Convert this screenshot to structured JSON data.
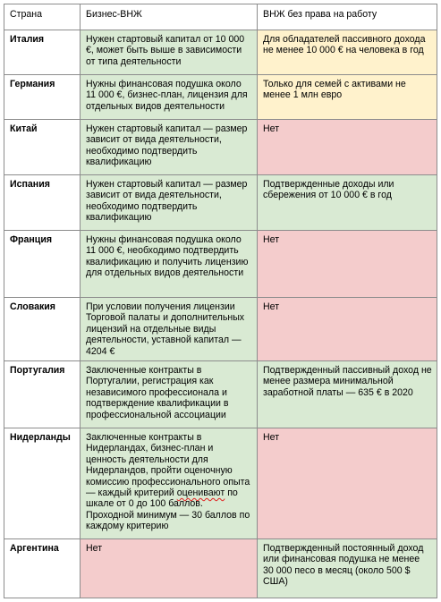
{
  "headers": {
    "country": "Страна",
    "business": "Бизнес-ВНЖ",
    "passive": "ВНЖ без права на работу"
  },
  "colors": {
    "green": "#d9ead3",
    "yellow": "#fff2cc",
    "red": "#f4cccc",
    "border": "#8c8c8c"
  },
  "rows": [
    {
      "country": "Италия",
      "business": "Нужен стартовый капитал от 10 000 €, может быть выше в зависимости от типа деятельности",
      "business_color": "green",
      "passive": "Для обладателей пассивного дохода не менее 10 000 € на человека в год",
      "passive_color": "yellow"
    },
    {
      "country": "Германия",
      "business": "Нужны финансовая подушка около 11 000 €, бизнес-план, лицензия для отдельных видов деятельности",
      "business_color": "green",
      "passive": "Только для семей с активами не менее 1 млн евро",
      "passive_color": "yellow"
    },
    {
      "country": "Китай",
      "business": "Нужен стартовый капитал — размер зависит от вида деятельности, необходимо подтвердить квалификацию",
      "business_color": "green",
      "passive": "Нет",
      "passive_color": "red"
    },
    {
      "country": "Испания",
      "business": "Нужен стартовый капитал — размер зависит от вида деятельности, необходимо подтвердить квалификацию",
      "business_color": "green",
      "passive": "Подтвержденные доходы или сбережения от 10 000 € в год",
      "passive_color": "green"
    },
    {
      "country": "Франция",
      "business": "Нужны финансовая подушка около 11 000 €, необходимо подтвердить квалификацию и получить лицензию для отдельных видов деятельности",
      "business_color": "green",
      "passive": "Нет",
      "passive_color": "red"
    },
    {
      "country": "Словакия",
      "business": "При условии получения лицензии Торговой палаты и дополнительных лицензий на отдельные виды деятельности, уставной капитал — 4204 €",
      "business_color": "green",
      "passive": "Нет",
      "passive_color": "red"
    },
    {
      "country": "Португалия",
      "business": "Заключенные контракты в Португалии, регистрация как независимого профессионала и подтверждение квалификации в профессиональной ассоциации",
      "business_color": "green",
      "passive": "Подтвержденный пассивный доход не менее размера минимальной заработной платы — 635 € в 2020",
      "passive_color": "green"
    },
    {
      "country": "Нидерланды",
      "business_pre": "Заключенные контракты в Нидерландах, бизнес-план и ценность деятельности для Нидерландов, пройти оценочную комиссию профессионального опыта — каждый критерий ",
      "business_word": "оценивают",
      "business_post": " по шкале от 0 до 100 баллов. Проходной минимум — 30 баллов по каждому критерию",
      "business_color": "green",
      "passive": "Нет",
      "passive_color": "red"
    },
    {
      "country": "Аргентина",
      "business": "Нет",
      "business_color": "red",
      "passive": "Подтвержденный постоянный доход или финансовая подушка не менее 30 000 песо в месяц (около 500 $ США)",
      "passive_color": "green"
    }
  ]
}
